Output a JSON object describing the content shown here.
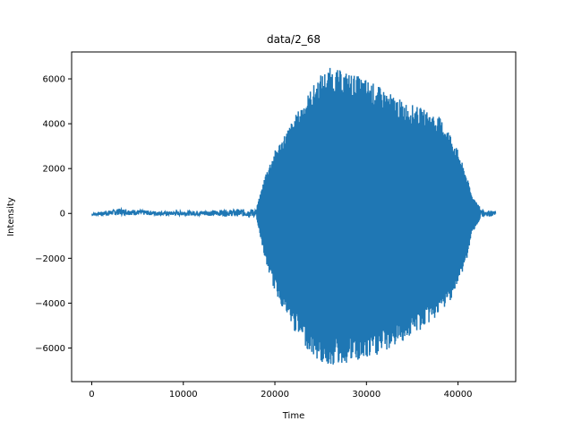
{
  "chart_data": {
    "type": "line",
    "title": "data/2_68",
    "xlabel": "Time",
    "ylabel": "Intensity",
    "xlim": [
      -2200,
      46300
    ],
    "ylim": [
      -7500,
      7200
    ],
    "xticks": [
      0,
      10000,
      20000,
      30000,
      40000
    ],
    "yticks": [
      -6000,
      -4000,
      -2000,
      0,
      2000,
      4000,
      6000
    ],
    "xtick_labels": [
      "0",
      "10000",
      "20000",
      "30000",
      "40000"
    ],
    "ytick_labels": [
      "−6000",
      "−4000",
      "−2000",
      "0",
      "2000",
      "4000",
      "6000"
    ],
    "grid": false,
    "series": [
      {
        "color": "#1f77b4",
        "x_range": [
          0,
          44100
        ],
        "envelope_x": [
          0,
          3000,
          8000,
          15000,
          18000,
          18500,
          19000,
          20000,
          22000,
          24000,
          25000,
          26000,
          28000,
          30000,
          32000,
          34000,
          36000,
          38000,
          39000,
          40000,
          41000,
          41500,
          42500,
          44100
        ],
        "envelope_upper": [
          0,
          250,
          100,
          200,
          250,
          1000,
          1800,
          2800,
          4200,
          5600,
          6200,
          6500,
          6300,
          6000,
          5500,
          5000,
          4700,
          4300,
          3700,
          2800,
          1600,
          800,
          250,
          100
        ],
        "envelope_lower": [
          -100,
          -100,
          -100,
          -150,
          -200,
          -1200,
          -2200,
          -3500,
          -5200,
          -6300,
          -6700,
          -6800,
          -6700,
          -6600,
          -6200,
          -5700,
          -5200,
          -4500,
          -4000,
          -3200,
          -2000,
          -900,
          -200,
          -100
        ]
      }
    ]
  }
}
